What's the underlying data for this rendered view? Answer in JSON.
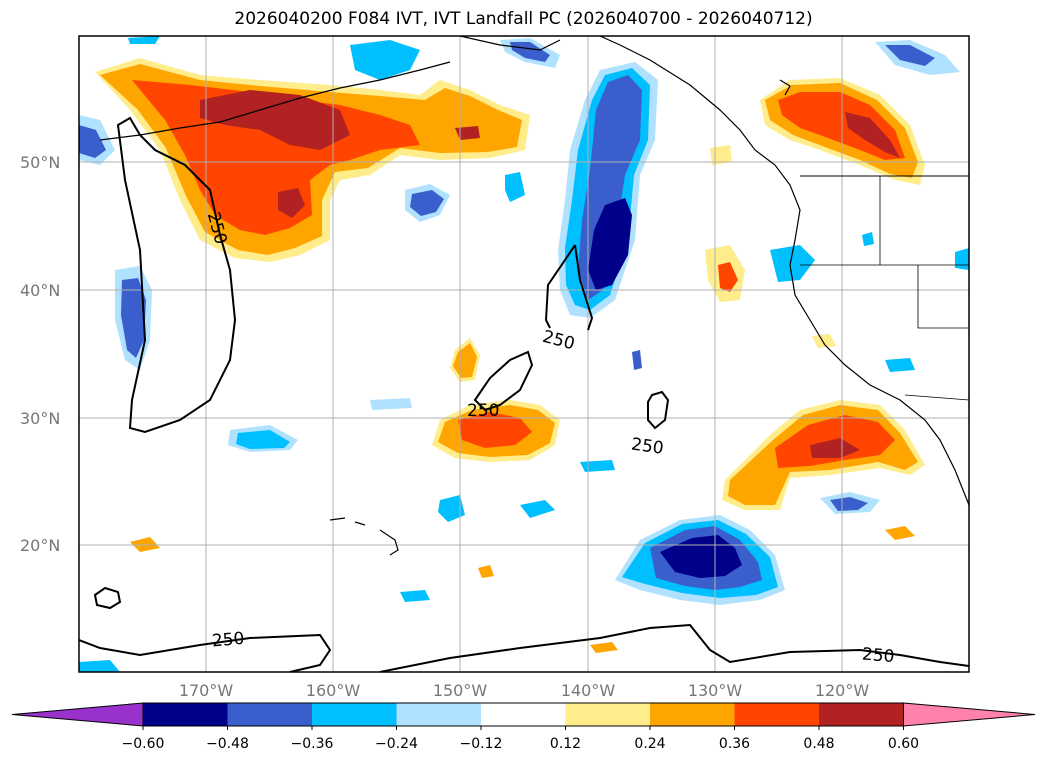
{
  "title": "2026040200 F084 IVT, IVT Landfall PC (2026040700 - 2026040712)",
  "lat_labels": [
    "50°N",
    "40°N",
    "30°N",
    "20°N"
  ],
  "lon_labels": [
    "170°W",
    "160°W",
    "150°W",
    "140°W",
    "130°W",
    "120°W"
  ],
  "contour_level": "250",
  "colorbar": {
    "colors": [
      "#9932CC",
      "#00008B",
      "#3A5FCD",
      "#00BFFF",
      "#B0E2FF",
      "#FFFFFF",
      "#FFEC8B",
      "#FFA500",
      "#FF4500",
      "#B22222",
      "#FF82AB"
    ],
    "ticks": [
      "−0.60",
      "−0.48",
      "−0.36",
      "−0.24",
      "−0.12",
      "0.12",
      "0.24",
      "0.36",
      "0.48",
      "0.60"
    ]
  }
}
